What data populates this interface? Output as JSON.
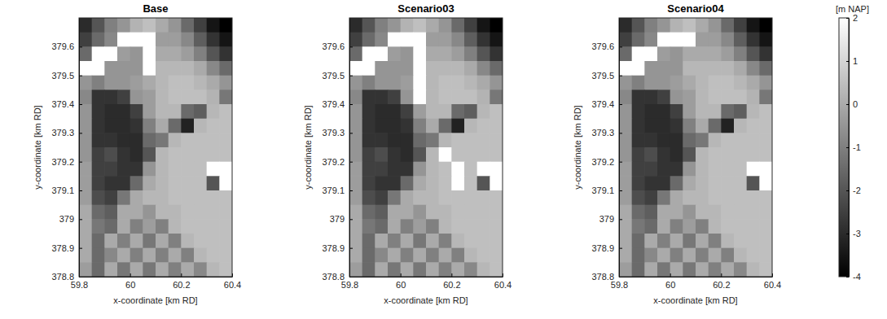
{
  "chart_data": [
    {
      "type": "heatmap",
      "title": "Base",
      "xlabel": "x-coordinate [km RD]",
      "ylabel": "y-coordinate [km RD]",
      "xlim": [
        59.8,
        60.4
      ],
      "ylim": [
        378.8,
        379.7
      ],
      "xticks": [
        59.8,
        60,
        60.2,
        60.4
      ],
      "yticks": [
        378.8,
        378.9,
        379,
        379.1,
        379.2,
        379.3,
        379.4,
        379.5,
        379.6
      ],
      "x": [
        59.825,
        59.875,
        59.925,
        59.975,
        60.025,
        60.075,
        60.125,
        60.175,
        60.225,
        60.275,
        60.325,
        60.375
      ],
      "y": [
        379.675,
        379.625,
        379.575,
        379.525,
        379.475,
        379.425,
        379.375,
        379.325,
        379.275,
        379.225,
        379.175,
        379.125,
        379.075,
        379.025,
        378.975,
        378.925,
        378.875,
        378.825
      ],
      "z": [
        [
          -3,
          -2,
          -1,
          -0.5,
          0.2,
          0.5,
          0,
          -0.5,
          -1.5,
          -2.5,
          -3.5,
          -4
        ],
        [
          -2.5,
          -1.5,
          -0.8,
          2,
          2,
          2,
          -0.3,
          -0.3,
          -0.8,
          -1.8,
          -2.8,
          -3.5
        ],
        [
          -1.5,
          2,
          2,
          -0.3,
          -0.5,
          2,
          0,
          0,
          -0.3,
          -1,
          -2,
          -2.8
        ],
        [
          2,
          2,
          -0.5,
          -0.5,
          -0.5,
          2,
          0.3,
          0.3,
          0.3,
          0,
          -0.8,
          -1.5
        ],
        [
          -0.5,
          -1,
          -0.5,
          -0.5,
          -0.3,
          0,
          0.3,
          0.5,
          0.5,
          0.3,
          0,
          -0.5
        ],
        [
          -0.8,
          -2.8,
          -2.8,
          -2.5,
          -0.5,
          -0.3,
          0.3,
          0.5,
          0.5,
          0.5,
          0.2,
          -1.2
        ],
        [
          -0.5,
          -2.8,
          -3,
          -3,
          -2.5,
          -0.3,
          0.3,
          0.3,
          -1.5,
          -1.8,
          0.3,
          0.5
        ],
        [
          -0.5,
          -2.8,
          -3,
          -3,
          -2.8,
          -1,
          0,
          -1.5,
          -3.2,
          0.3,
          0.5,
          0.5
        ],
        [
          -0.5,
          -2.8,
          -2.8,
          -3,
          -3,
          -1.5,
          -1.2,
          0.3,
          0.5,
          0.5,
          0.5,
          0.5
        ],
        [
          -0.5,
          -2.5,
          -2.2,
          -2.8,
          -3,
          -2,
          0.3,
          0.5,
          0.5,
          0.5,
          0.5,
          0.5
        ],
        [
          -0.3,
          -2.5,
          -2.5,
          -2.8,
          -2.8,
          -0.5,
          0.3,
          0.5,
          0.5,
          0.5,
          2,
          2
        ],
        [
          -0.3,
          -2.5,
          -2.8,
          -2.8,
          -1.5,
          0,
          0.3,
          0.5,
          0.5,
          0.5,
          -2,
          2
        ],
        [
          -0.3,
          -2.2,
          -2.5,
          -1.2,
          0,
          0.3,
          0.3,
          0.5,
          0.5,
          0.5,
          0.5,
          0.5
        ],
        [
          0,
          -1.5,
          -1.8,
          0,
          0,
          -0.5,
          0.3,
          0.3,
          0.5,
          0.5,
          0.5,
          0.5
        ],
        [
          0,
          -1.2,
          -1.5,
          0,
          -1,
          -0.3,
          -1,
          0.3,
          0.5,
          0.5,
          0.5,
          0.5
        ],
        [
          0,
          -1.5,
          0,
          -1,
          0,
          -1.2,
          0,
          -1,
          0.3,
          0.5,
          0.5,
          0.5
        ],
        [
          0,
          -1.5,
          -0.8,
          0,
          -1,
          0,
          -1,
          0,
          -1,
          0.3,
          0.5,
          0.5
        ],
        [
          -0.3,
          -1.5,
          0,
          -1.2,
          0,
          -1.2,
          0,
          -1,
          0,
          -0.8,
          0.3,
          0.5
        ]
      ]
    },
    {
      "type": "heatmap",
      "title": "Scenario03",
      "xlabel": "x-coordinate [km RD]",
      "ylabel": "y-coordinate [km RD]",
      "xlim": [
        59.8,
        60.4
      ],
      "ylim": [
        378.8,
        379.7
      ],
      "xticks": [
        59.8,
        60,
        60.2,
        60.4
      ],
      "yticks": [
        378.8,
        378.9,
        379,
        379.1,
        379.2,
        379.3,
        379.4,
        379.5,
        379.6
      ],
      "x": [
        59.825,
        59.875,
        59.925,
        59.975,
        60.025,
        60.075,
        60.125,
        60.175,
        60.225,
        60.275,
        60.325,
        60.375
      ],
      "y": [
        379.675,
        379.625,
        379.575,
        379.525,
        379.475,
        379.425,
        379.375,
        379.325,
        379.275,
        379.225,
        379.175,
        379.125,
        379.075,
        379.025,
        378.975,
        378.925,
        378.875,
        378.825
      ],
      "z": [
        [
          -3,
          -2,
          -1,
          -0.5,
          0.2,
          0.5,
          0,
          -0.5,
          -1.5,
          -2.5,
          -3.5,
          -4
        ],
        [
          -2.5,
          -1.5,
          -0.8,
          2,
          2,
          2,
          -0.3,
          -0.3,
          -0.8,
          -1.8,
          -2.8,
          -3.5
        ],
        [
          -1.5,
          2,
          2,
          -0.3,
          -0.5,
          2,
          0,
          0,
          -0.3,
          -1,
          -2,
          -2.8
        ],
        [
          2,
          2,
          -0.5,
          -0.5,
          -0.5,
          2,
          0.3,
          0.3,
          0.3,
          0,
          -0.8,
          -1.5
        ],
        [
          -0.5,
          -1,
          -0.5,
          -0.5,
          -0.3,
          2,
          0.3,
          0.5,
          0.5,
          0.3,
          0,
          -0.5
        ],
        [
          -0.8,
          -2.8,
          -2.8,
          -2.5,
          -0.5,
          2,
          0.3,
          0.5,
          0.5,
          0.5,
          0.2,
          -1.2
        ],
        [
          -0.5,
          -2.8,
          -3,
          -3,
          -2.5,
          -0.3,
          0.3,
          0.3,
          -1.5,
          -1.8,
          0.3,
          0.5
        ],
        [
          -0.5,
          -2.8,
          -3,
          -3,
          -2.8,
          -1,
          0,
          -1.5,
          -3.2,
          0.3,
          0.5,
          0.5
        ],
        [
          -0.5,
          -2.8,
          -2.8,
          -3,
          -3,
          -1.5,
          -1.2,
          0.3,
          0.5,
          0.5,
          0.5,
          0.5
        ],
        [
          -0.5,
          -2.5,
          -2.2,
          -2.8,
          -3,
          -2,
          0.3,
          2,
          0.5,
          0.5,
          0.5,
          0.5
        ],
        [
          -0.3,
          -2.5,
          -2.5,
          -2.8,
          -2.8,
          -0.5,
          0.3,
          0.5,
          2,
          0.5,
          2,
          2
        ],
        [
          -0.3,
          -2.5,
          -2.8,
          -2.8,
          -1.5,
          0,
          0.3,
          0.5,
          2,
          0.5,
          -2,
          2
        ],
        [
          -0.3,
          -2.2,
          -2.5,
          -1.2,
          0,
          0.3,
          0.3,
          0.5,
          0.5,
          0.5,
          0.5,
          0.5
        ],
        [
          0,
          -1.5,
          -1.8,
          0,
          0,
          -0.5,
          0.3,
          0.3,
          0.5,
          0.5,
          0.5,
          0.5
        ],
        [
          0,
          -1.2,
          -1.5,
          0,
          -1,
          -0.3,
          -1,
          0.3,
          0.5,
          0.5,
          0.5,
          0.5
        ],
        [
          0,
          -1.5,
          0,
          -1,
          0,
          -1.2,
          0,
          -1,
          0.3,
          0.5,
          0.5,
          0.5
        ],
        [
          0,
          -1.5,
          -0.8,
          0,
          -1,
          0,
          -1,
          0,
          -1,
          0.3,
          0.5,
          0.5
        ],
        [
          -0.3,
          -1.5,
          0,
          -1.2,
          0,
          -1.2,
          0,
          -1,
          0,
          -0.8,
          0.3,
          0.5
        ]
      ]
    },
    {
      "type": "heatmap",
      "title": "Scenario04",
      "xlabel": "x-coordinate [km RD]",
      "ylabel": "y-coordinate [km RD]",
      "xlim": [
        59.8,
        60.4
      ],
      "ylim": [
        378.8,
        379.7
      ],
      "xticks": [
        59.8,
        60,
        60.2,
        60.4
      ],
      "yticks": [
        378.8,
        378.9,
        379,
        379.1,
        379.2,
        379.3,
        379.4,
        379.5,
        379.6
      ],
      "x": [
        59.825,
        59.875,
        59.925,
        59.975,
        60.025,
        60.075,
        60.125,
        60.175,
        60.225,
        60.275,
        60.325,
        60.375
      ],
      "y": [
        379.675,
        379.625,
        379.575,
        379.525,
        379.475,
        379.425,
        379.375,
        379.325,
        379.275,
        379.225,
        379.175,
        379.125,
        379.075,
        379.025,
        378.975,
        378.925,
        378.875,
        378.825
      ],
      "z": [
        [
          -3,
          -2,
          -1,
          -0.5,
          0.2,
          0.5,
          0,
          -0.5,
          -1.5,
          -2.5,
          -3.5,
          -4
        ],
        [
          -2.5,
          -1.5,
          -0.8,
          2,
          2,
          2,
          -0.3,
          -0.3,
          -0.8,
          -1.8,
          -2.8,
          -3.5
        ],
        [
          -1.5,
          2,
          2,
          -0.3,
          -0.5,
          0,
          0,
          0,
          -0.3,
          -1,
          -2,
          -2.8
        ],
        [
          2,
          2,
          -0.5,
          -0.5,
          -0.5,
          0.3,
          0.3,
          0.3,
          0.3,
          0,
          -0.8,
          -1.5
        ],
        [
          -0.5,
          -1,
          -0.5,
          -0.5,
          -0.3,
          0,
          0.3,
          0.5,
          0.5,
          0.3,
          0,
          -0.5
        ],
        [
          -0.8,
          -2.8,
          -2.8,
          -2.5,
          -0.5,
          -0.3,
          0.3,
          0.5,
          0.5,
          0.5,
          0.2,
          -1.2
        ],
        [
          -0.5,
          -2.8,
          -3,
          -3,
          -2.5,
          -0.3,
          0.3,
          0.3,
          -1.5,
          -1.8,
          0.3,
          0.5
        ],
        [
          -0.5,
          -2.8,
          -3,
          -3,
          -2.8,
          -1,
          0,
          -1.5,
          -3.2,
          0.3,
          0.5,
          0.5
        ],
        [
          -0.5,
          -2.8,
          -2.8,
          -3,
          -3,
          -1.5,
          -1.2,
          0.3,
          0.5,
          0.5,
          0.5,
          0.5
        ],
        [
          -0.5,
          -2.5,
          -2.2,
          -2.8,
          -3,
          -2,
          0.3,
          0.5,
          0.5,
          0.5,
          0.5,
          0.5
        ],
        [
          -0.3,
          -2.5,
          -2.5,
          -2.8,
          -2.8,
          -0.5,
          0.3,
          0.5,
          0.5,
          0.5,
          2,
          2
        ],
        [
          -0.3,
          -2.5,
          -2.8,
          -2.8,
          -1.5,
          0,
          0.3,
          0.5,
          0.5,
          0.5,
          -2,
          2
        ],
        [
          -0.3,
          -2.2,
          -2.5,
          -1.2,
          0,
          0.3,
          0.3,
          0.5,
          0.5,
          0.5,
          0.5,
          0.5
        ],
        [
          0,
          -1.5,
          -1.8,
          0,
          0,
          -0.5,
          0.3,
          0.3,
          0.5,
          0.5,
          0.5,
          0.5
        ],
        [
          0,
          -1.2,
          -1.5,
          0,
          -1,
          -0.3,
          -1,
          0.3,
          0.5,
          0.5,
          0.5,
          0.5
        ],
        [
          0,
          -1.5,
          0,
          -1,
          0,
          -1.2,
          0,
          -1,
          0.3,
          0.5,
          0.5,
          0.5
        ],
        [
          0,
          -1.5,
          -0.8,
          0,
          -1,
          0,
          -1,
          0,
          -1,
          0.3,
          0.5,
          0.5
        ],
        [
          -0.3,
          -1.5,
          0,
          -1.2,
          0,
          -1.2,
          0,
          -1,
          0,
          -0.8,
          0.3,
          0.5
        ]
      ],
      "colorbar": {
        "label": "[m NAP]",
        "lim": [
          -4,
          2
        ],
        "ticks": [
          -4,
          -3,
          -2,
          -1,
          0,
          1,
          2
        ]
      }
    }
  ]
}
